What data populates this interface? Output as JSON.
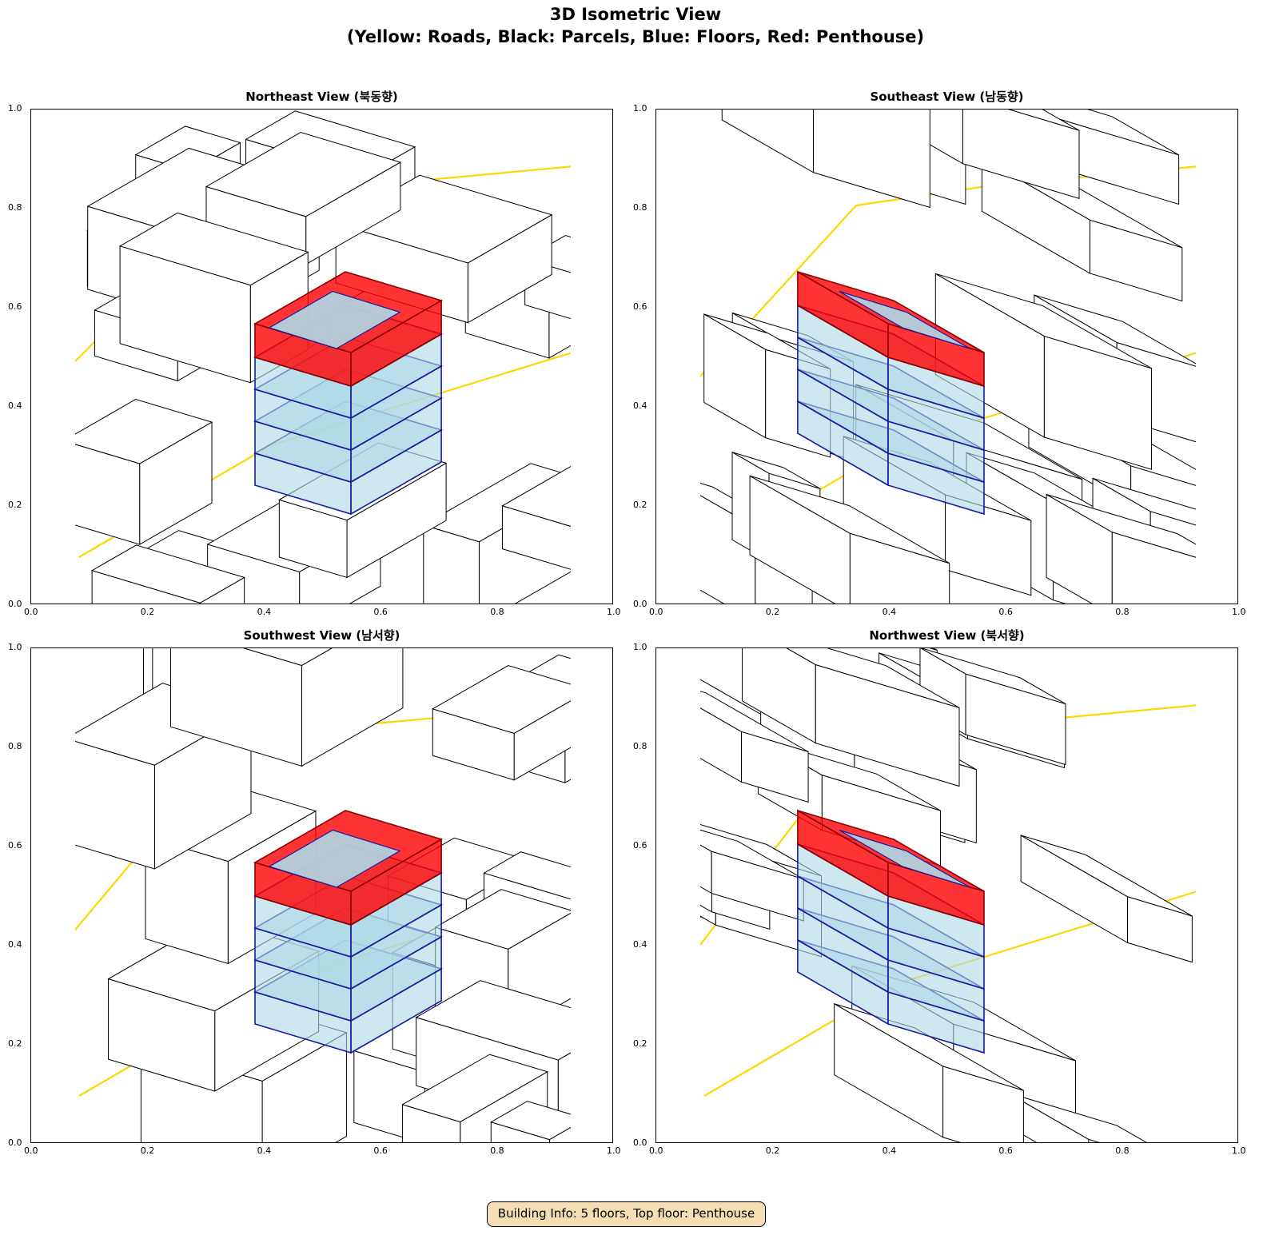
{
  "figure": {
    "title_line1": "3D Isometric View",
    "title_line2": "(Yellow: Roads, Black: Parcels, Blue: Floors, Red: Penthouse)"
  },
  "panels": [
    {
      "title": "Northeast View (북동향)"
    },
    {
      "title": "Southeast View (남동향)"
    },
    {
      "title": "Southwest View (남서향)"
    },
    {
      "title": "Northwest View (북서향)"
    }
  ],
  "ticks": [
    "0.0",
    "0.2",
    "0.4",
    "0.6",
    "0.8",
    "1.0"
  ],
  "info_box": "Building Info: 5 floors, Top floor: Penthouse",
  "building": {
    "floors": 5,
    "top_floor": "Penthouse"
  },
  "colors": {
    "roads": "#ffd700",
    "parcels": "#000000",
    "floors": "#add8e6",
    "floor_edges": "#1a1aa0",
    "penthouse": "#ff0000",
    "info_bg": "#f5deb3"
  }
}
